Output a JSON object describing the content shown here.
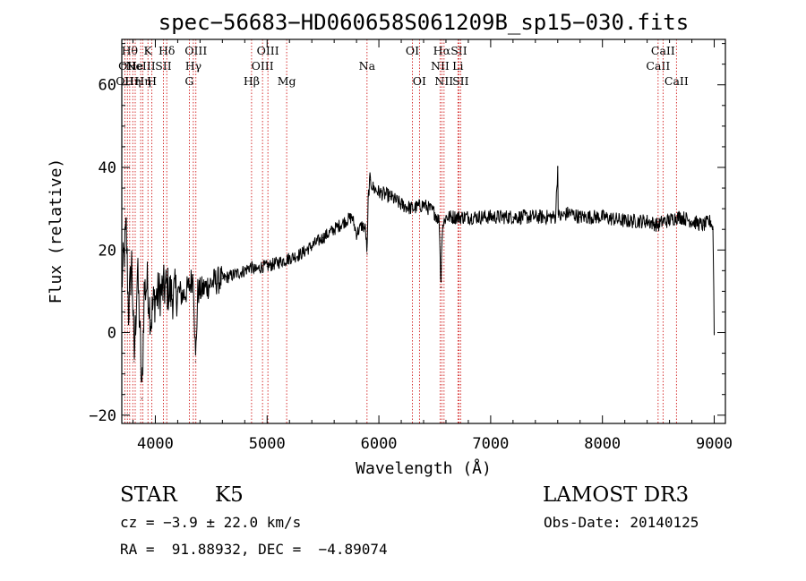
{
  "chart_data": {
    "type": "line",
    "title": "spec−56683−HD060658S061209B_sp15−030.fits",
    "xlabel": "Wavelength (Å)",
    "ylabel": "Flux (relative)",
    "xlim": [
      3700,
      9100
    ],
    "ylim": [
      -22,
      71
    ],
    "x_ticks": [
      4000,
      5000,
      6000,
      7000,
      8000,
      9000
    ],
    "y_ticks": [
      -20,
      0,
      20,
      40,
      60
    ],
    "y_tick_labels": [
      "−20",
      "0",
      "20",
      "40",
      "60"
    ],
    "grid": false,
    "series": [
      {
        "x": [
          3700,
          3740,
          3760,
          3790,
          3810,
          3840,
          3860,
          3880,
          3900,
          3930,
          3960,
          3990,
          4050,
          4100,
          4150,
          4200,
          4250,
          4300,
          4340,
          4360,
          4380,
          4400,
          4450,
          4500,
          4600,
          4700,
          4800,
          4850,
          4900,
          4950,
          5000,
          5100,
          5200,
          5300,
          5400,
          5500,
          5600,
          5700,
          5760,
          5790,
          5800,
          5850,
          5880,
          5895,
          5905,
          5920,
          5950,
          6000,
          6100,
          6200,
          6300,
          6400,
          6500,
          6540,
          6555,
          6563,
          6570,
          6600,
          6700,
          6800,
          7000,
          7200,
          7400,
          7580,
          7600,
          7605,
          7620,
          7700,
          7800,
          8000,
          8200,
          8400,
          8498,
          8542,
          8580,
          8662,
          8700,
          8800,
          8900,
          8970,
          8990,
          9000
        ],
        "y": [
          12,
          25,
          5,
          18,
          -7,
          15,
          2,
          -16,
          10,
          12,
          3,
          8,
          10,
          11,
          9,
          10,
          9,
          11,
          14,
          -7,
          10,
          10,
          11,
          12,
          13,
          14,
          15,
          16,
          15,
          16,
          16,
          17,
          18,
          19,
          21,
          23,
          25,
          27,
          28,
          25,
          24,
          26,
          25,
          19,
          33,
          37,
          35,
          34,
          33,
          31,
          30,
          31,
          29,
          27,
          11,
          23,
          26,
          28,
          28,
          28,
          28,
          28,
          28,
          28,
          40,
          28,
          28,
          29,
          28,
          28,
          27,
          27,
          26,
          27,
          27,
          28,
          28,
          27,
          26,
          27,
          25,
          0
        ]
      }
    ],
    "emission_lines": [
      {
        "x": 3727,
        "label": "OII",
        "row": 2
      },
      {
        "x": 3750,
        "label": "OII",
        "row": 1
      },
      {
        "x": 3771,
        "label": "Hθ",
        "row": 0
      },
      {
        "x": 3798,
        "label": "Hη",
        "row": 2
      },
      {
        "x": 3820,
        "label": "He",
        "row": 1
      },
      {
        "x": 3869,
        "label": "NeIII",
        "row": 1
      },
      {
        "x": 3889,
        "label": "Hη",
        "row": 2
      },
      {
        "x": 3934,
        "label": "K",
        "row": 0
      },
      {
        "x": 3969,
        "label": "H",
        "row": 2
      },
      {
        "x": 4072,
        "label": "SII",
        "row": 1
      },
      {
        "x": 4102,
        "label": "Hδ",
        "row": 0
      },
      {
        "x": 4304,
        "label": "G",
        "row": 2
      },
      {
        "x": 4340,
        "label": "Hγ",
        "row": 1
      },
      {
        "x": 4363,
        "label": "OIII",
        "row": 0
      },
      {
        "x": 4861,
        "label": "Hβ",
        "row": 2
      },
      {
        "x": 4959,
        "label": "OIII",
        "row": 1
      },
      {
        "x": 5007,
        "label": "OIII",
        "row": 0
      },
      {
        "x": 5175,
        "label": "Mg",
        "row": 2
      },
      {
        "x": 5894,
        "label": "Na",
        "row": 1
      },
      {
        "x": 6300,
        "label": "OI",
        "row": 0
      },
      {
        "x": 6363,
        "label": "OI",
        "row": 2
      },
      {
        "x": 6548,
        "label": "NII",
        "row": 1
      },
      {
        "x": 6563,
        "label": "Hα",
        "row": 0
      },
      {
        "x": 6583,
        "label": "NII",
        "row": 2
      },
      {
        "x": 6707,
        "label": "Li",
        "row": 1
      },
      {
        "x": 6716,
        "label": "SII",
        "row": 0
      },
      {
        "x": 6731,
        "label": "SII",
        "row": 2
      },
      {
        "x": 8498,
        "label": "CaII",
        "row": 1
      },
      {
        "x": 8542,
        "label": "CaII",
        "row": 0
      },
      {
        "x": 8662,
        "label": "CaII",
        "row": 2
      }
    ],
    "colors": {
      "spectrum": "#000000",
      "lines": "#cc0000",
      "axes": "#000000"
    }
  },
  "info": {
    "class": "STAR",
    "subclass": "K5",
    "survey": "LAMOST DR3",
    "cz": "cz = −3.9 ± 22.0 km/s",
    "obs_date": "Obs-Date: 20140125",
    "coords": "RA =  91.88932, DEC =  −4.89074"
  }
}
